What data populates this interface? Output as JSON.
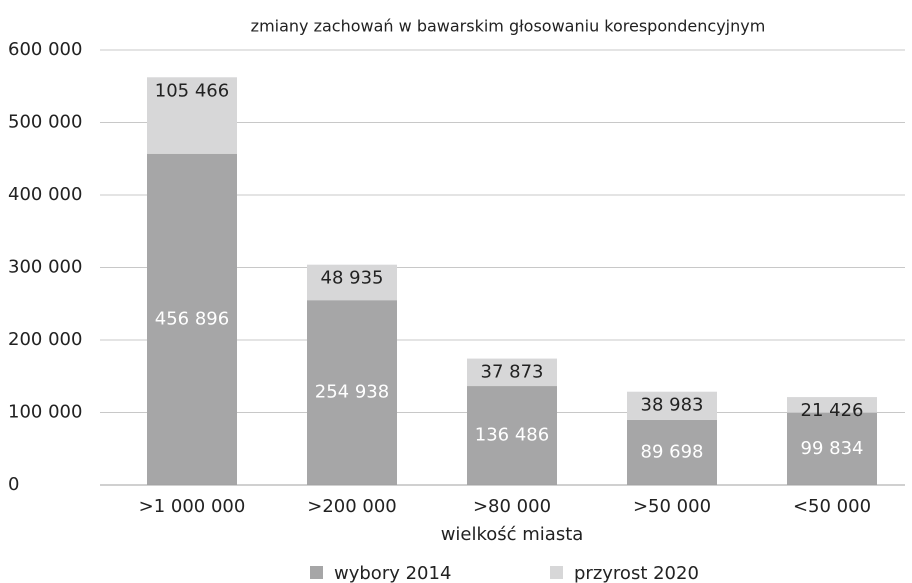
{
  "chart_data": {
    "type": "stacked_bar",
    "title": "zmiany zachowań w bawarskim głosowaniu korespondencyjnym",
    "x_label": "wielkość miasta",
    "categories": [
      ">1 000 000",
      ">200 000",
      ">80 000",
      ">50 000",
      "<50 000"
    ],
    "series": [
      {
        "name": "wybory 2014",
        "color": "#a6a6a7",
        "values": [
          456896,
          254938,
          136486,
          89698,
          99834
        ],
        "value_labels": [
          "456 896",
          "254 938",
          "136 486",
          "89 698",
          "99 834"
        ]
      },
      {
        "name": "przyrost 2020",
        "color": "#d7d7d8",
        "values": [
          105466,
          48935,
          37873,
          38983,
          21426
        ],
        "value_labels": [
          "105 466",
          "48 935",
          "37 873",
          "38 983",
          "21 426"
        ]
      }
    ],
    "ylim": [
      0,
      600000
    ],
    "yticks": [
      0,
      {
        "value": 100000,
        "label": "100 000"
      },
      {
        "value": 200000,
        "label": "200 000"
      },
      {
        "value": 300000,
        "label": "300 000"
      },
      {
        "value": 400000,
        "label": "400 000"
      },
      {
        "value": 500000,
        "label": "500 000"
      },
      {
        "value": 600000,
        "label": "600 000"
      }
    ],
    "grid": true,
    "legend": "bottom"
  }
}
